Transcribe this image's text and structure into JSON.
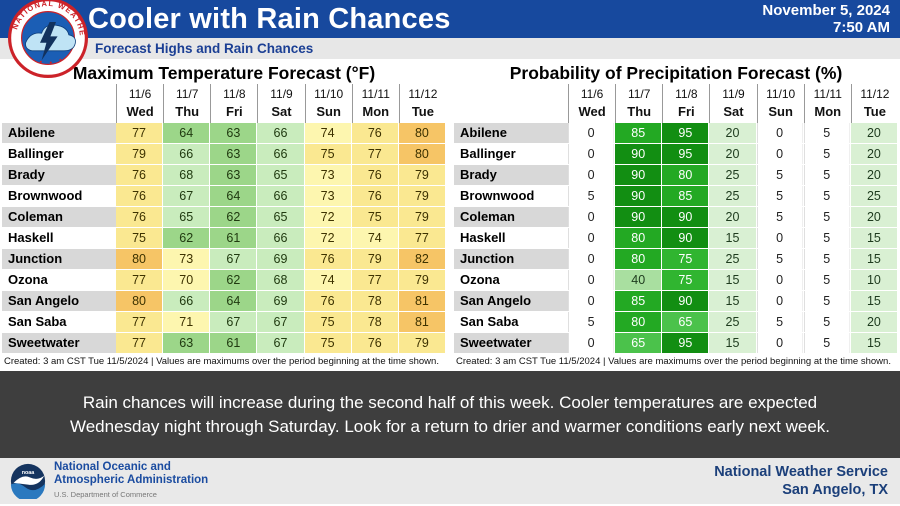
{
  "header": {
    "title": "Cooler with Rain Chances",
    "date": "November 5, 2024",
    "time": "7:50 AM",
    "subtitle": "Forecast Highs and Rain Chances",
    "accent_blue": "#17499E"
  },
  "icons": {
    "nws_logo": "nws-circular-logo",
    "noaa_logo": "noaa-circular-logo"
  },
  "chart_data": [
    {
      "type": "table",
      "title": "Maximum Temperature Forecast (°F)",
      "unit": "°F",
      "columns": [
        {
          "date": "11/6",
          "day": "Wed"
        },
        {
          "date": "11/7",
          "day": "Thu"
        },
        {
          "date": "11/8",
          "day": "Fri"
        },
        {
          "date": "11/9",
          "day": "Sat"
        },
        {
          "date": "11/10",
          "day": "Sun"
        },
        {
          "date": "11/11",
          "day": "Mon"
        },
        {
          "date": "11/12",
          "day": "Tue"
        }
      ],
      "rows": [
        {
          "city": "Abilene",
          "values": [
            77,
            64,
            63,
            66,
            74,
            76,
            80
          ]
        },
        {
          "city": "Ballinger",
          "values": [
            79,
            66,
            63,
            66,
            75,
            77,
            80
          ]
        },
        {
          "city": "Brady",
          "values": [
            76,
            68,
            63,
            65,
            73,
            76,
            79
          ]
        },
        {
          "city": "Brownwood",
          "values": [
            76,
            67,
            64,
            66,
            73,
            76,
            79
          ]
        },
        {
          "city": "Coleman",
          "values": [
            76,
            65,
            62,
            65,
            72,
            75,
            79
          ]
        },
        {
          "city": "Haskell",
          "values": [
            75,
            62,
            61,
            66,
            72,
            74,
            77
          ]
        },
        {
          "city": "Junction",
          "values": [
            80,
            73,
            67,
            69,
            76,
            79,
            82
          ]
        },
        {
          "city": "Ozona",
          "values": [
            77,
            70,
            62,
            68,
            74,
            77,
            79
          ]
        },
        {
          "city": "San Angelo",
          "values": [
            80,
            66,
            64,
            69,
            76,
            78,
            81
          ]
        },
        {
          "city": "San Saba",
          "values": [
            77,
            71,
            67,
            67,
            75,
            78,
            81
          ]
        },
        {
          "city": "Sweetwater",
          "values": [
            77,
            63,
            61,
            67,
            75,
            76,
            79
          ]
        }
      ],
      "created_note": "Created: 3 am CST Tue 11/5/2024  |  Values are maximums over the period beginning at the time shown.",
      "color_scale": [
        {
          "min": 60,
          "max": 64,
          "bg": "#9CD689",
          "fg": "#203a10"
        },
        {
          "min": 65,
          "max": 69,
          "bg": "#C9ECBD",
          "fg": "#203a10"
        },
        {
          "min": 70,
          "max": 74,
          "bg": "#FDF6AF",
          "fg": "#3d3200"
        },
        {
          "min": 75,
          "max": 79,
          "bg": "#FAE891",
          "fg": "#3d3200"
        },
        {
          "min": 80,
          "max": 84,
          "bg": "#F6C566",
          "fg": "#3d3200"
        }
      ]
    },
    {
      "type": "table",
      "title": "Probability of Precipitation Forecast (%)",
      "unit": "%",
      "columns": [
        {
          "date": "11/6",
          "day": "Wed"
        },
        {
          "date": "11/7",
          "day": "Thu"
        },
        {
          "date": "11/8",
          "day": "Fri"
        },
        {
          "date": "11/9",
          "day": "Sat"
        },
        {
          "date": "11/10",
          "day": "Sun"
        },
        {
          "date": "11/11",
          "day": "Mon"
        },
        {
          "date": "11/12",
          "day": "Tue"
        }
      ],
      "rows": [
        {
          "city": "Abilene",
          "values": [
            0,
            85,
            95,
            20,
            0,
            5,
            20
          ]
        },
        {
          "city": "Ballinger",
          "values": [
            0,
            90,
            95,
            20,
            0,
            5,
            20
          ]
        },
        {
          "city": "Brady",
          "values": [
            0,
            90,
            80,
            25,
            5,
            5,
            20
          ]
        },
        {
          "city": "Brownwood",
          "values": [
            5,
            90,
            85,
            25,
            5,
            5,
            25
          ]
        },
        {
          "city": "Coleman",
          "values": [
            0,
            90,
            90,
            20,
            5,
            5,
            20
          ]
        },
        {
          "city": "Haskell",
          "values": [
            0,
            80,
            90,
            15,
            0,
            5,
            15
          ]
        },
        {
          "city": "Junction",
          "values": [
            0,
            80,
            75,
            25,
            5,
            5,
            15
          ]
        },
        {
          "city": "Ozona",
          "values": [
            0,
            40,
            75,
            15,
            0,
            5,
            10
          ]
        },
        {
          "city": "San Angelo",
          "values": [
            0,
            85,
            90,
            15,
            0,
            5,
            15
          ]
        },
        {
          "city": "San Saba",
          "values": [
            5,
            80,
            65,
            25,
            5,
            5,
            20
          ]
        },
        {
          "city": "Sweetwater",
          "values": [
            0,
            65,
            95,
            15,
            0,
            5,
            15
          ]
        }
      ],
      "created_note": "Created: 3 am CST Tue 11/5/2024  |  Values are maximums over the period beginning at the time shown.",
      "color_scale": [
        {
          "min": 0,
          "max": 9,
          "bg": "#FFFFFF",
          "fg": "#222222",
          "plain": true
        },
        {
          "min": 10,
          "max": 29,
          "bg": "#D9F0D3",
          "fg": "#1d3a1d"
        },
        {
          "min": 30,
          "max": 49,
          "bg": "#A9DFA0",
          "fg": "#1d3a1d"
        },
        {
          "min": 50,
          "max": 69,
          "bg": "#4BC24B",
          "fg": "#FFFFFF"
        },
        {
          "min": 70,
          "max": 79,
          "bg": "#30B530",
          "fg": "#FFFFFF"
        },
        {
          "min": 80,
          "max": 89,
          "bg": "#23A923",
          "fg": "#FFFFFF"
        },
        {
          "min": 90,
          "max": 100,
          "bg": "#128E12",
          "fg": "#FFFFFF"
        }
      ]
    }
  ],
  "message": {
    "line1": "Rain chances will increase during the second half of this week. Cooler temperatures are expected",
    "line2": "Wednesday night through Saturday. Look for a return to drier and warmer conditions early next week."
  },
  "footer": {
    "noaa_line1": "National Oceanic and",
    "noaa_line2": "Atmospheric Administration",
    "noaa_dept": "U.S. Department of Commerce",
    "nws_line1": "National Weather Service",
    "nws_line2": "San Angelo, TX"
  }
}
